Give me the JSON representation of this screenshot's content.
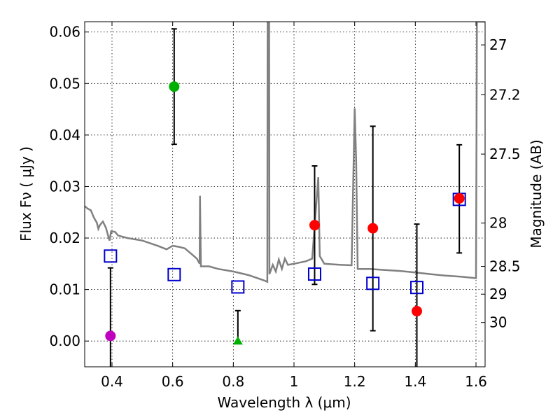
{
  "chart_data": {
    "type": "scatter",
    "xlabel": "Wavelength  λ (μm)",
    "ylabel_left": "Flux  Fν  ( μJy )",
    "ylabel_right": "Magnitude (AB)",
    "xlim": [
      0.31,
      1.63
    ],
    "ylim": [
      -0.005,
      0.062
    ],
    "grid": true,
    "x_ticks": [
      0.4,
      0.6,
      0.8,
      1.0,
      1.2,
      1.4,
      1.6
    ],
    "x_tick_labels": [
      "0.4",
      "0.6",
      "0.8",
      "1",
      "1.2",
      "1.4",
      "1.6"
    ],
    "y_ticks": [
      0.0,
      0.01,
      0.02,
      0.03,
      0.04,
      0.05,
      0.06
    ],
    "y_tick_labels": [
      "0.00",
      "0.01",
      "0.02",
      "0.03",
      "0.04",
      "0.05",
      "0.06"
    ],
    "right_ticks": [
      {
        "label": "27",
        "flux": 0.0575
      },
      {
        "label": "27.2",
        "flux": 0.0478
      },
      {
        "label": "27.5",
        "flux": 0.0363
      },
      {
        "label": "28",
        "flux": 0.0229
      },
      {
        "label": "28.5",
        "flux": 0.0145
      },
      {
        "label": "29",
        "flux": 0.0091
      },
      {
        "label": "30",
        "flux": 0.0036
      }
    ],
    "colors": {
      "model": "#808080",
      "errorbar": "#000000",
      "magenta": "#bf00bf",
      "green": "#00b000",
      "red": "#ff0000",
      "square": "#0000cc"
    },
    "model_sed": [
      [
        0.31,
        0.0262
      ],
      [
        0.32,
        0.0257
      ],
      [
        0.33,
        0.0254
      ],
      [
        0.34,
        0.024
      ],
      [
        0.35,
        0.023
      ],
      [
        0.355,
        0.0218
      ],
      [
        0.36,
        0.0225
      ],
      [
        0.37,
        0.0232
      ],
      [
        0.38,
        0.022
      ],
      [
        0.387,
        0.0205
      ],
      [
        0.392,
        0.0195
      ],
      [
        0.397,
        0.0213
      ],
      [
        0.41,
        0.0212
      ],
      [
        0.42,
        0.0205
      ],
      [
        0.45,
        0.02
      ],
      [
        0.5,
        0.0195
      ],
      [
        0.55,
        0.0185
      ],
      [
        0.58,
        0.0178
      ],
      [
        0.6,
        0.0185
      ],
      [
        0.62,
        0.0183
      ],
      [
        0.64,
        0.018
      ],
      [
        0.66,
        0.017
      ],
      [
        0.68,
        0.016
      ],
      [
        0.689,
        0.015
      ],
      [
        0.69,
        0.0282
      ],
      [
        0.693,
        0.0145
      ],
      [
        0.72,
        0.0145
      ],
      [
        0.75,
        0.014
      ],
      [
        0.8,
        0.0135
      ],
      [
        0.85,
        0.0128
      ],
      [
        0.9,
        0.0118
      ],
      [
        0.912,
        0.0115
      ],
      [
        0.913,
        0.062
      ],
      [
        0.918,
        0.062
      ],
      [
        0.919,
        0.013
      ],
      [
        0.93,
        0.0148
      ],
      [
        0.94,
        0.0135
      ],
      [
        0.95,
        0.0158
      ],
      [
        0.96,
        0.014
      ],
      [
        0.97,
        0.016
      ],
      [
        0.98,
        0.0148
      ],
      [
        1.0,
        0.015
      ],
      [
        1.04,
        0.0155
      ],
      [
        1.06,
        0.016
      ],
      [
        1.08,
        0.0318
      ],
      [
        1.085,
        0.0165
      ],
      [
        1.1,
        0.015
      ],
      [
        1.15,
        0.0148
      ],
      [
        1.19,
        0.0147
      ],
      [
        1.2,
        0.0452
      ],
      [
        1.205,
        0.035
      ],
      [
        1.21,
        0.014
      ],
      [
        1.25,
        0.014
      ],
      [
        1.3,
        0.0138
      ],
      [
        1.35,
        0.0136
      ],
      [
        1.4,
        0.0133
      ],
      [
        1.45,
        0.013
      ],
      [
        1.5,
        0.0127
      ],
      [
        1.55,
        0.0125
      ],
      [
        1.6,
        0.0122
      ],
      [
        1.603,
        0.062
      ],
      [
        1.63,
        0.062
      ]
    ],
    "points": [
      {
        "x": 0.395,
        "y": 0.001,
        "err_low": 0.02,
        "err_high": 0.0132,
        "marker": "circle",
        "color": "magenta"
      },
      {
        "x": 0.605,
        "y": 0.0494,
        "err_low": 0.0112,
        "err_high": 0.0112,
        "marker": "circle",
        "color": "green"
      },
      {
        "x": 0.815,
        "y": 0.0,
        "err_low": 0.0,
        "err_high": 0.0059,
        "marker": "triangle",
        "color": "green"
      },
      {
        "x": 1.068,
        "y": 0.0225,
        "err_low": 0.0115,
        "err_high": 0.0115,
        "marker": "circle",
        "color": "red"
      },
      {
        "x": 1.26,
        "y": 0.0219,
        "err_low": 0.0199,
        "err_high": 0.0198,
        "marker": "circle",
        "color": "red"
      },
      {
        "x": 1.405,
        "y": 0.0058,
        "err_low": 0.017,
        "err_high": 0.0169,
        "marker": "circle",
        "color": "red"
      },
      {
        "x": 1.545,
        "y": 0.0277,
        "err_low": 0.0106,
        "err_high": 0.0104,
        "marker": "circle",
        "color": "red"
      }
    ],
    "model_bands": [
      {
        "x": 0.395,
        "y": 0.0165
      },
      {
        "x": 0.605,
        "y": 0.0129
      },
      {
        "x": 0.815,
        "y": 0.0105
      },
      {
        "x": 1.068,
        "y": 0.013
      },
      {
        "x": 1.26,
        "y": 0.0112
      },
      {
        "x": 1.405,
        "y": 0.0104
      },
      {
        "x": 1.545,
        "y": 0.0275
      }
    ]
  }
}
